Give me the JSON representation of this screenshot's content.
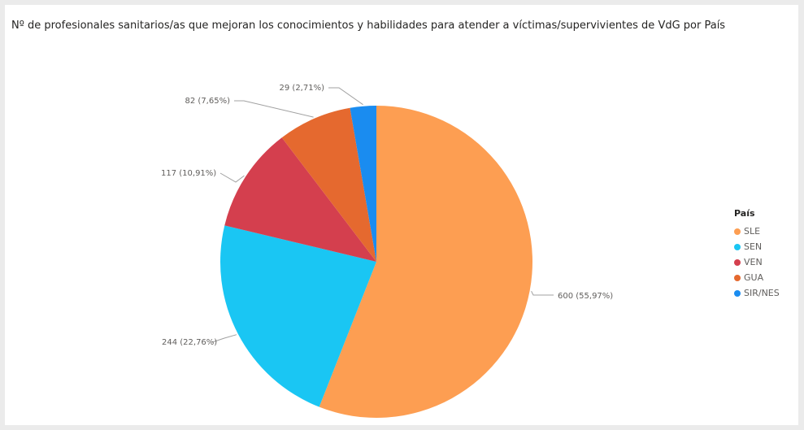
{
  "chart_data": {
    "type": "pie",
    "title": "Nº de profesionales sanitarios/as que mejoran los conocimientos y habilidades para atender a víctimas/supervivientes de VdG por País",
    "legend_title": "País",
    "legend_position": "right",
    "slices": [
      {
        "name": "SLE",
        "value": 600,
        "label": "600 (55,97%)",
        "color": "#fd9e52"
      },
      {
        "name": "SEN",
        "value": 244,
        "label": "244 (22,76%)",
        "color": "#1ac6f3"
      },
      {
        "name": "VEN",
        "value": 117,
        "label": "117 (10,91%)",
        "color": "#d43f4e"
      },
      {
        "name": "GUA",
        "value": 82,
        "label": "82 (7,65%)",
        "color": "#e5692f"
      },
      {
        "name": "SIR/NES",
        "value": 29,
        "label": "29 (2,71%)",
        "color": "#1a8cf0"
      }
    ]
  }
}
